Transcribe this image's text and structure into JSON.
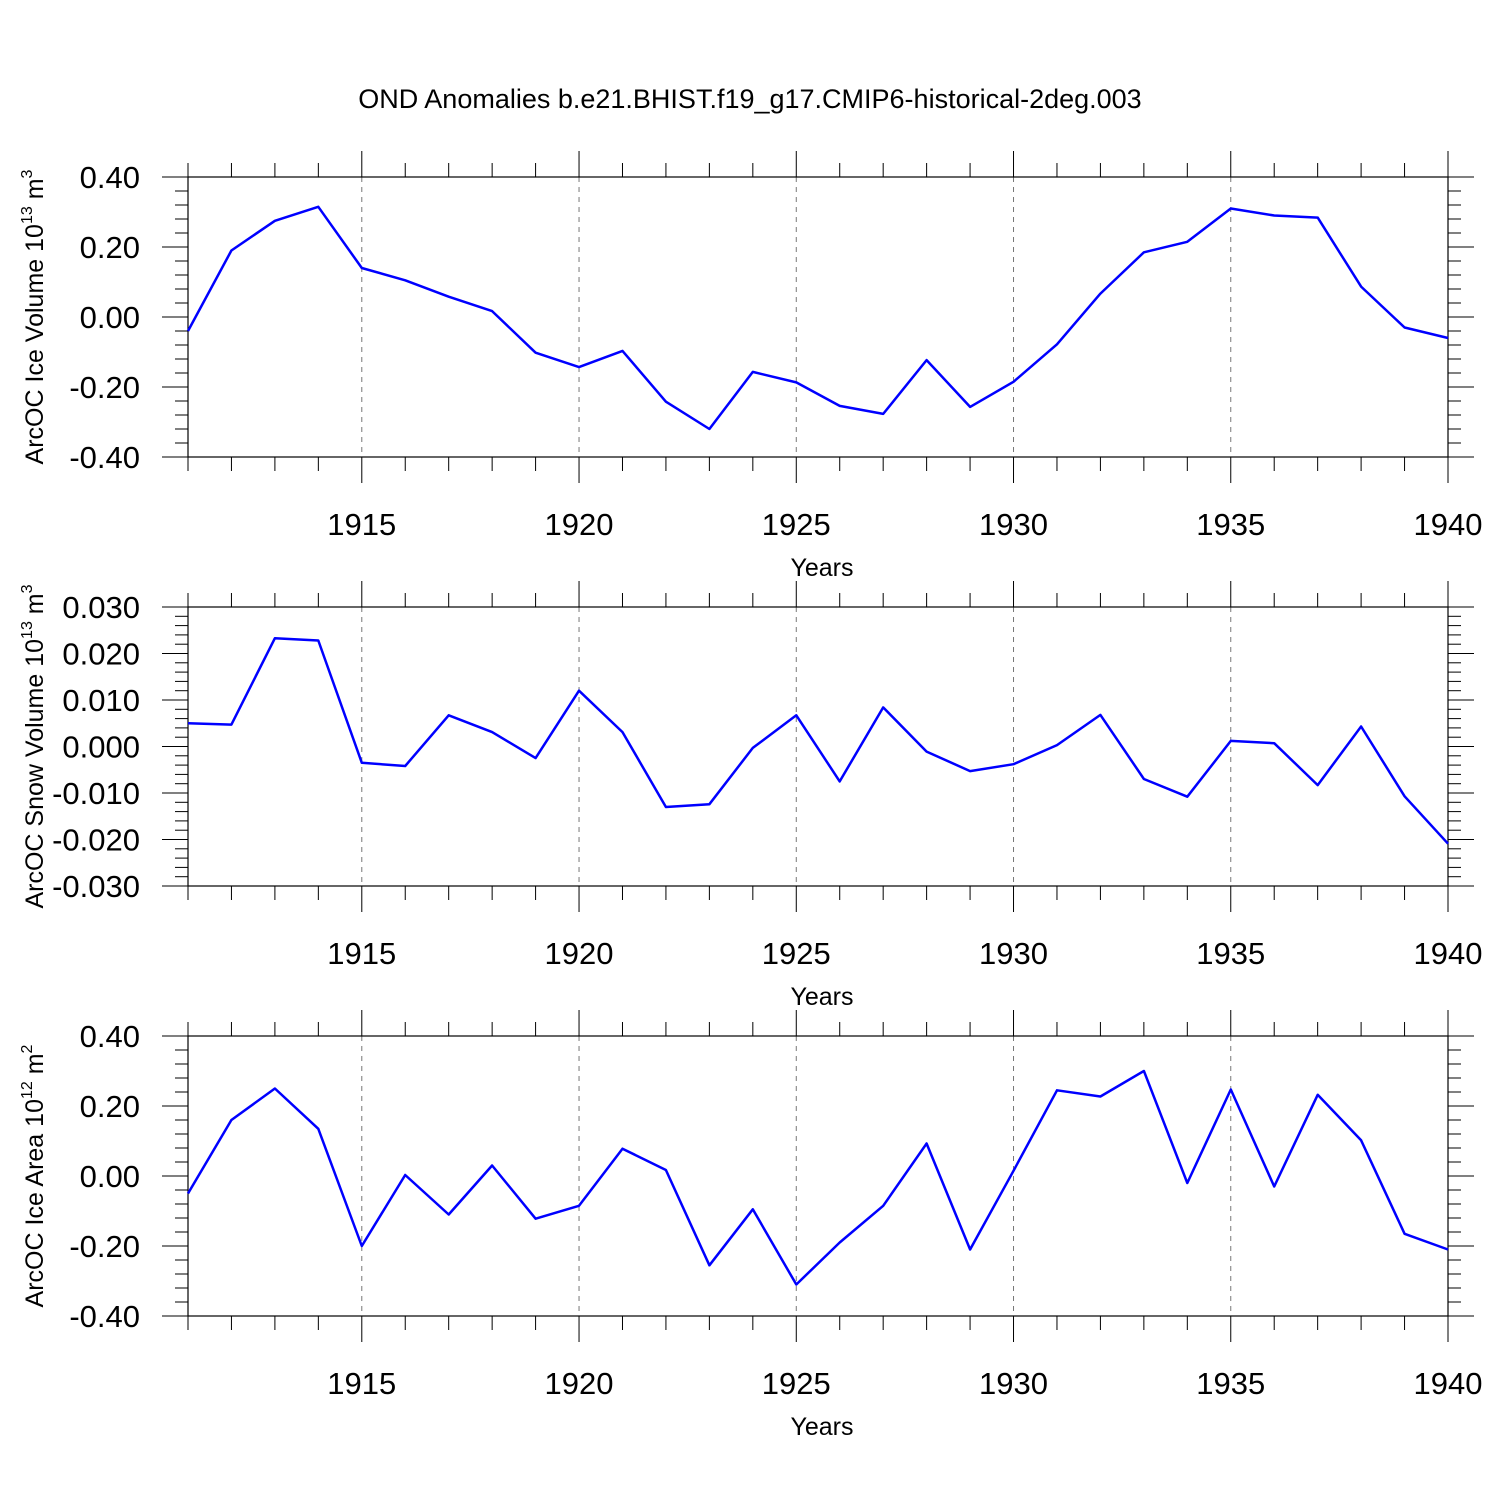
{
  "title": "OND Anomalies b.e21.BHIST.f19_g17.CMIP6-historical-2deg.003",
  "line_color": "#0000ff",
  "chart_data": [
    {
      "type": "line",
      "ylabel_main": "ArcOC Ice Volume 10",
      "ylabel_sup": "13",
      "ylabel_unit": " m",
      "ylabel_unit_sup": "3",
      "xlabel": "Years",
      "xlim": [
        1911,
        1940
      ],
      "ylim": [
        -0.4,
        0.4
      ],
      "yticks": [
        -0.4,
        -0.2,
        0.0,
        0.2,
        0.4
      ],
      "ytick_labels": [
        "-0.40",
        "-0.20",
        "0.00",
        "0.20",
        "0.40"
      ],
      "xticks": [
        1915,
        1920,
        1925,
        1930,
        1935,
        1940
      ],
      "xtick_labels": [
        "1915",
        "1920",
        "1925",
        "1930",
        "1935",
        "1940"
      ],
      "grid": "dashed vertical at major x ticks",
      "x": [
        1911,
        1912,
        1913,
        1914,
        1915,
        1916,
        1917,
        1918,
        1919,
        1920,
        1921,
        1922,
        1923,
        1924,
        1925,
        1926,
        1927,
        1928,
        1929,
        1930,
        1931,
        1932,
        1933,
        1934,
        1935,
        1936,
        1937,
        1938,
        1939,
        1940
      ],
      "values": [
        -0.04,
        0.19,
        0.275,
        0.315,
        0.14,
        0.105,
        0.058,
        0.017,
        -0.102,
        -0.143,
        -0.097,
        -0.242,
        -0.32,
        -0.157,
        -0.187,
        -0.254,
        -0.277,
        -0.123,
        -0.257,
        -0.185,
        -0.078,
        0.067,
        0.185,
        0.215,
        0.31,
        0.29,
        0.284,
        0.087,
        -0.03,
        -0.06
      ]
    },
    {
      "type": "line",
      "ylabel_main": "ArcOC Snow Volume 10",
      "ylabel_sup": "13",
      "ylabel_unit": " m",
      "ylabel_unit_sup": "3",
      "xlabel": "Years",
      "xlim": [
        1911,
        1940
      ],
      "ylim": [
        -0.03,
        0.03
      ],
      "yticks": [
        -0.03,
        -0.02,
        -0.01,
        0.0,
        0.01,
        0.02,
        0.03
      ],
      "ytick_labels": [
        "-0.030",
        "-0.020",
        "-0.010",
        "0.000",
        "0.010",
        "0.020",
        "0.030"
      ],
      "xticks": [
        1915,
        1920,
        1925,
        1930,
        1935,
        1940
      ],
      "xtick_labels": [
        "1915",
        "1920",
        "1925",
        "1930",
        "1935",
        "1940"
      ],
      "grid": "dashed vertical at major x ticks",
      "x": [
        1911,
        1912,
        1913,
        1914,
        1915,
        1916,
        1917,
        1918,
        1919,
        1920,
        1921,
        1922,
        1923,
        1924,
        1925,
        1926,
        1927,
        1928,
        1929,
        1930,
        1931,
        1932,
        1933,
        1934,
        1935,
        1936,
        1937,
        1938,
        1939,
        1940
      ],
      "values": [
        0.005,
        0.0047,
        0.0233,
        0.0228,
        -0.0035,
        -0.0042,
        0.0067,
        0.0031,
        -0.0025,
        0.012,
        0.0031,
        -0.013,
        -0.0124,
        -0.0003,
        0.0067,
        -0.0075,
        0.0084,
        -0.0011,
        -0.0053,
        -0.0038,
        0.0003,
        0.0068,
        -0.007,
        -0.0108,
        0.0012,
        0.0007,
        -0.0083,
        0.0043,
        -0.0107,
        -0.0209
      ]
    },
    {
      "type": "line",
      "ylabel_main": "ArcOC Ice Area 10",
      "ylabel_sup": "12",
      "ylabel_unit": " m",
      "ylabel_unit_sup": "2",
      "xlabel": "Years",
      "xlim": [
        1911,
        1940
      ],
      "ylim": [
        -0.4,
        0.4
      ],
      "yticks": [
        -0.4,
        -0.2,
        0.0,
        0.2,
        0.4
      ],
      "ytick_labels": [
        "-0.40",
        "-0.20",
        "0.00",
        "0.20",
        "0.40"
      ],
      "xticks": [
        1915,
        1920,
        1925,
        1930,
        1935,
        1940
      ],
      "xtick_labels": [
        "1915",
        "1920",
        "1925",
        "1930",
        "1935",
        "1940"
      ],
      "grid": "dashed vertical at major x ticks",
      "x": [
        1911,
        1912,
        1913,
        1914,
        1915,
        1916,
        1917,
        1918,
        1919,
        1920,
        1921,
        1922,
        1923,
        1924,
        1925,
        1926,
        1927,
        1928,
        1929,
        1930,
        1931,
        1932,
        1933,
        1934,
        1935,
        1936,
        1937,
        1938,
        1939,
        1940
      ],
      "values": [
        -0.05,
        0.16,
        0.25,
        0.135,
        -0.2,
        0.003,
        -0.11,
        0.03,
        -0.122,
        -0.085,
        0.078,
        0.017,
        -0.255,
        -0.095,
        -0.31,
        -0.19,
        -0.085,
        0.093,
        -0.21,
        0.015,
        0.245,
        0.227,
        0.3,
        -0.02,
        0.247,
        -0.03,
        0.232,
        0.102,
        -0.165,
        -0.21
      ]
    }
  ]
}
